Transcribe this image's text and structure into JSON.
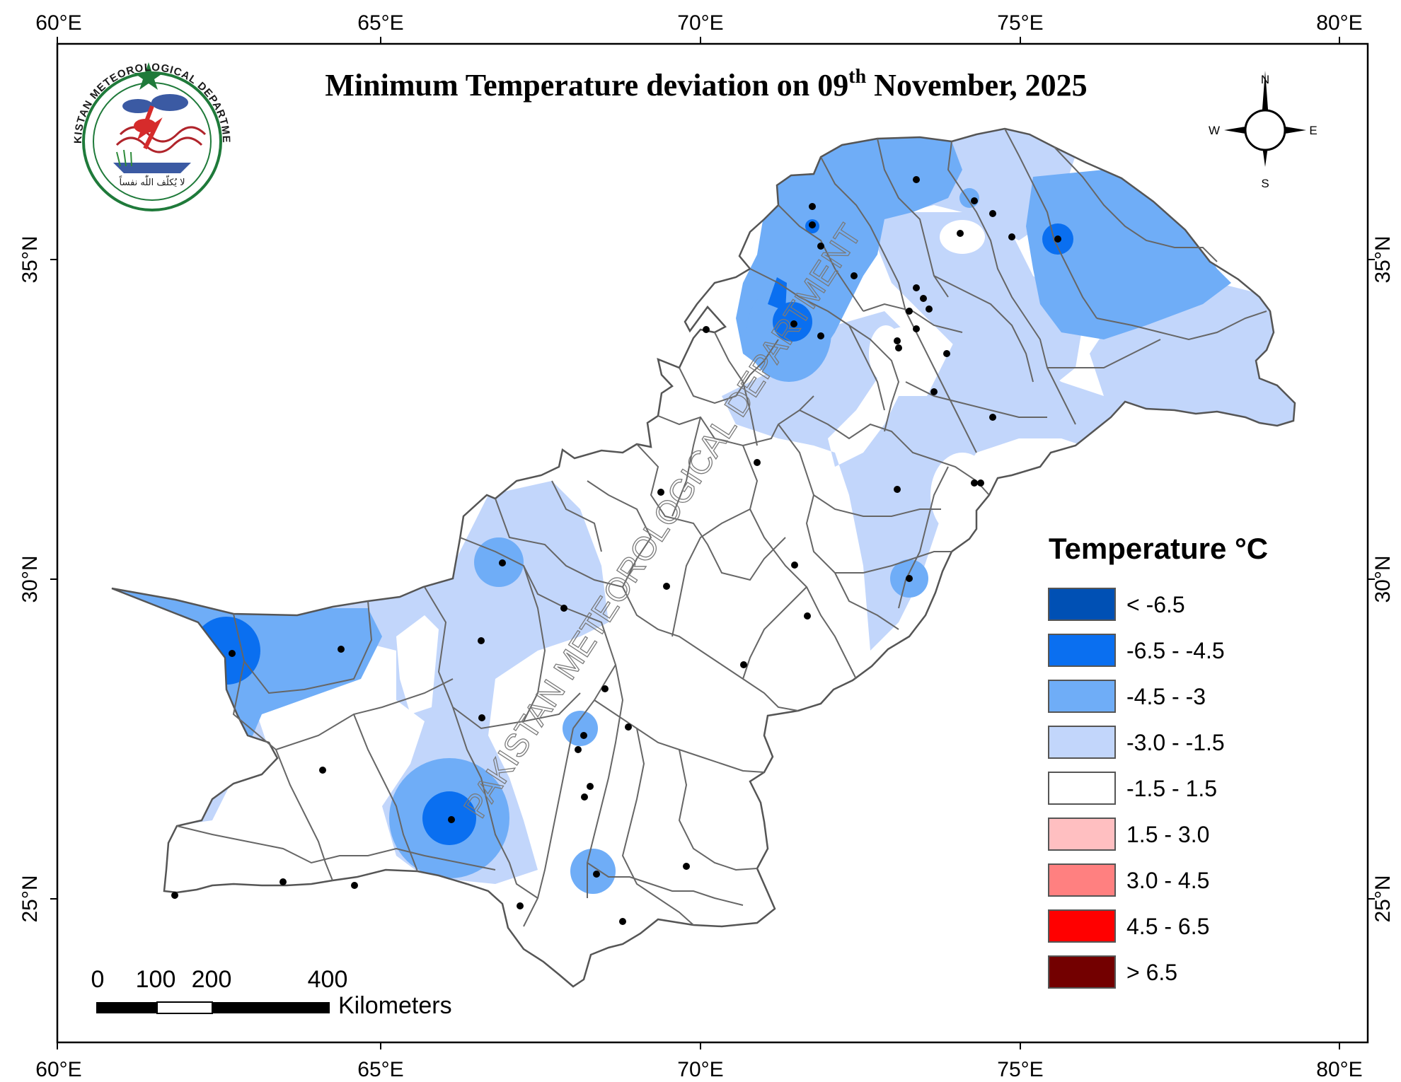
{
  "title": {
    "main": "Minimum Temperature deviation on 09",
    "sup": "th",
    "rest": " November, 2025"
  },
  "axes": {
    "top_ticks": [
      "60°E",
      "65°E",
      "70°E",
      "75°E",
      "80°E"
    ],
    "bottom_ticks": [
      "60°E",
      "65°E",
      "70°E",
      "75°E",
      "80°E"
    ],
    "left_ticks": [
      "35°N",
      "30°N",
      "25°N"
    ],
    "right_ticks": [
      "35°N",
      "30°N",
      "25°N"
    ]
  },
  "logo": {
    "ring_text": "PAKISTAN METEOROLOGICAL DEPARTMENT",
    "motto": "لا يُكلّف اللّٰه نفساً",
    "colors": {
      "ring": "#1f7a3a",
      "star": "#1f7a3a"
    }
  },
  "compass": {
    "n": "N",
    "s": "S",
    "e": "E",
    "w": "W"
  },
  "legend": {
    "title": "Temperature °C",
    "items": [
      {
        "label": "< -6.5",
        "color": "#0050b4"
      },
      {
        "label": "-6.5 - -4.5",
        "color": "#0a6ff0"
      },
      {
        "label": "-4.5 - -3",
        "color": "#6fadf7"
      },
      {
        "label": "-3.0 - -1.5",
        "color": "#c2d6fb"
      },
      {
        "label": "-1.5 - 1.5",
        "color": "#ffffff"
      },
      {
        "label": "1.5 - 3.0",
        "color": "#ffbfc1"
      },
      {
        "label": "3.0 - 4.5",
        "color": "#ff8080"
      },
      {
        "label": "4.5 - 6.5",
        "color": "#ff0000"
      },
      {
        "label": "> 6.5",
        "color": "#730000"
      }
    ]
  },
  "scale_bar": {
    "labels": [
      "0",
      "100",
      "200",
      "400"
    ],
    "unit": "Kilometers"
  },
  "watermark": "PAKISTAN METEOROLOGICAL DEPARTMENT"
}
